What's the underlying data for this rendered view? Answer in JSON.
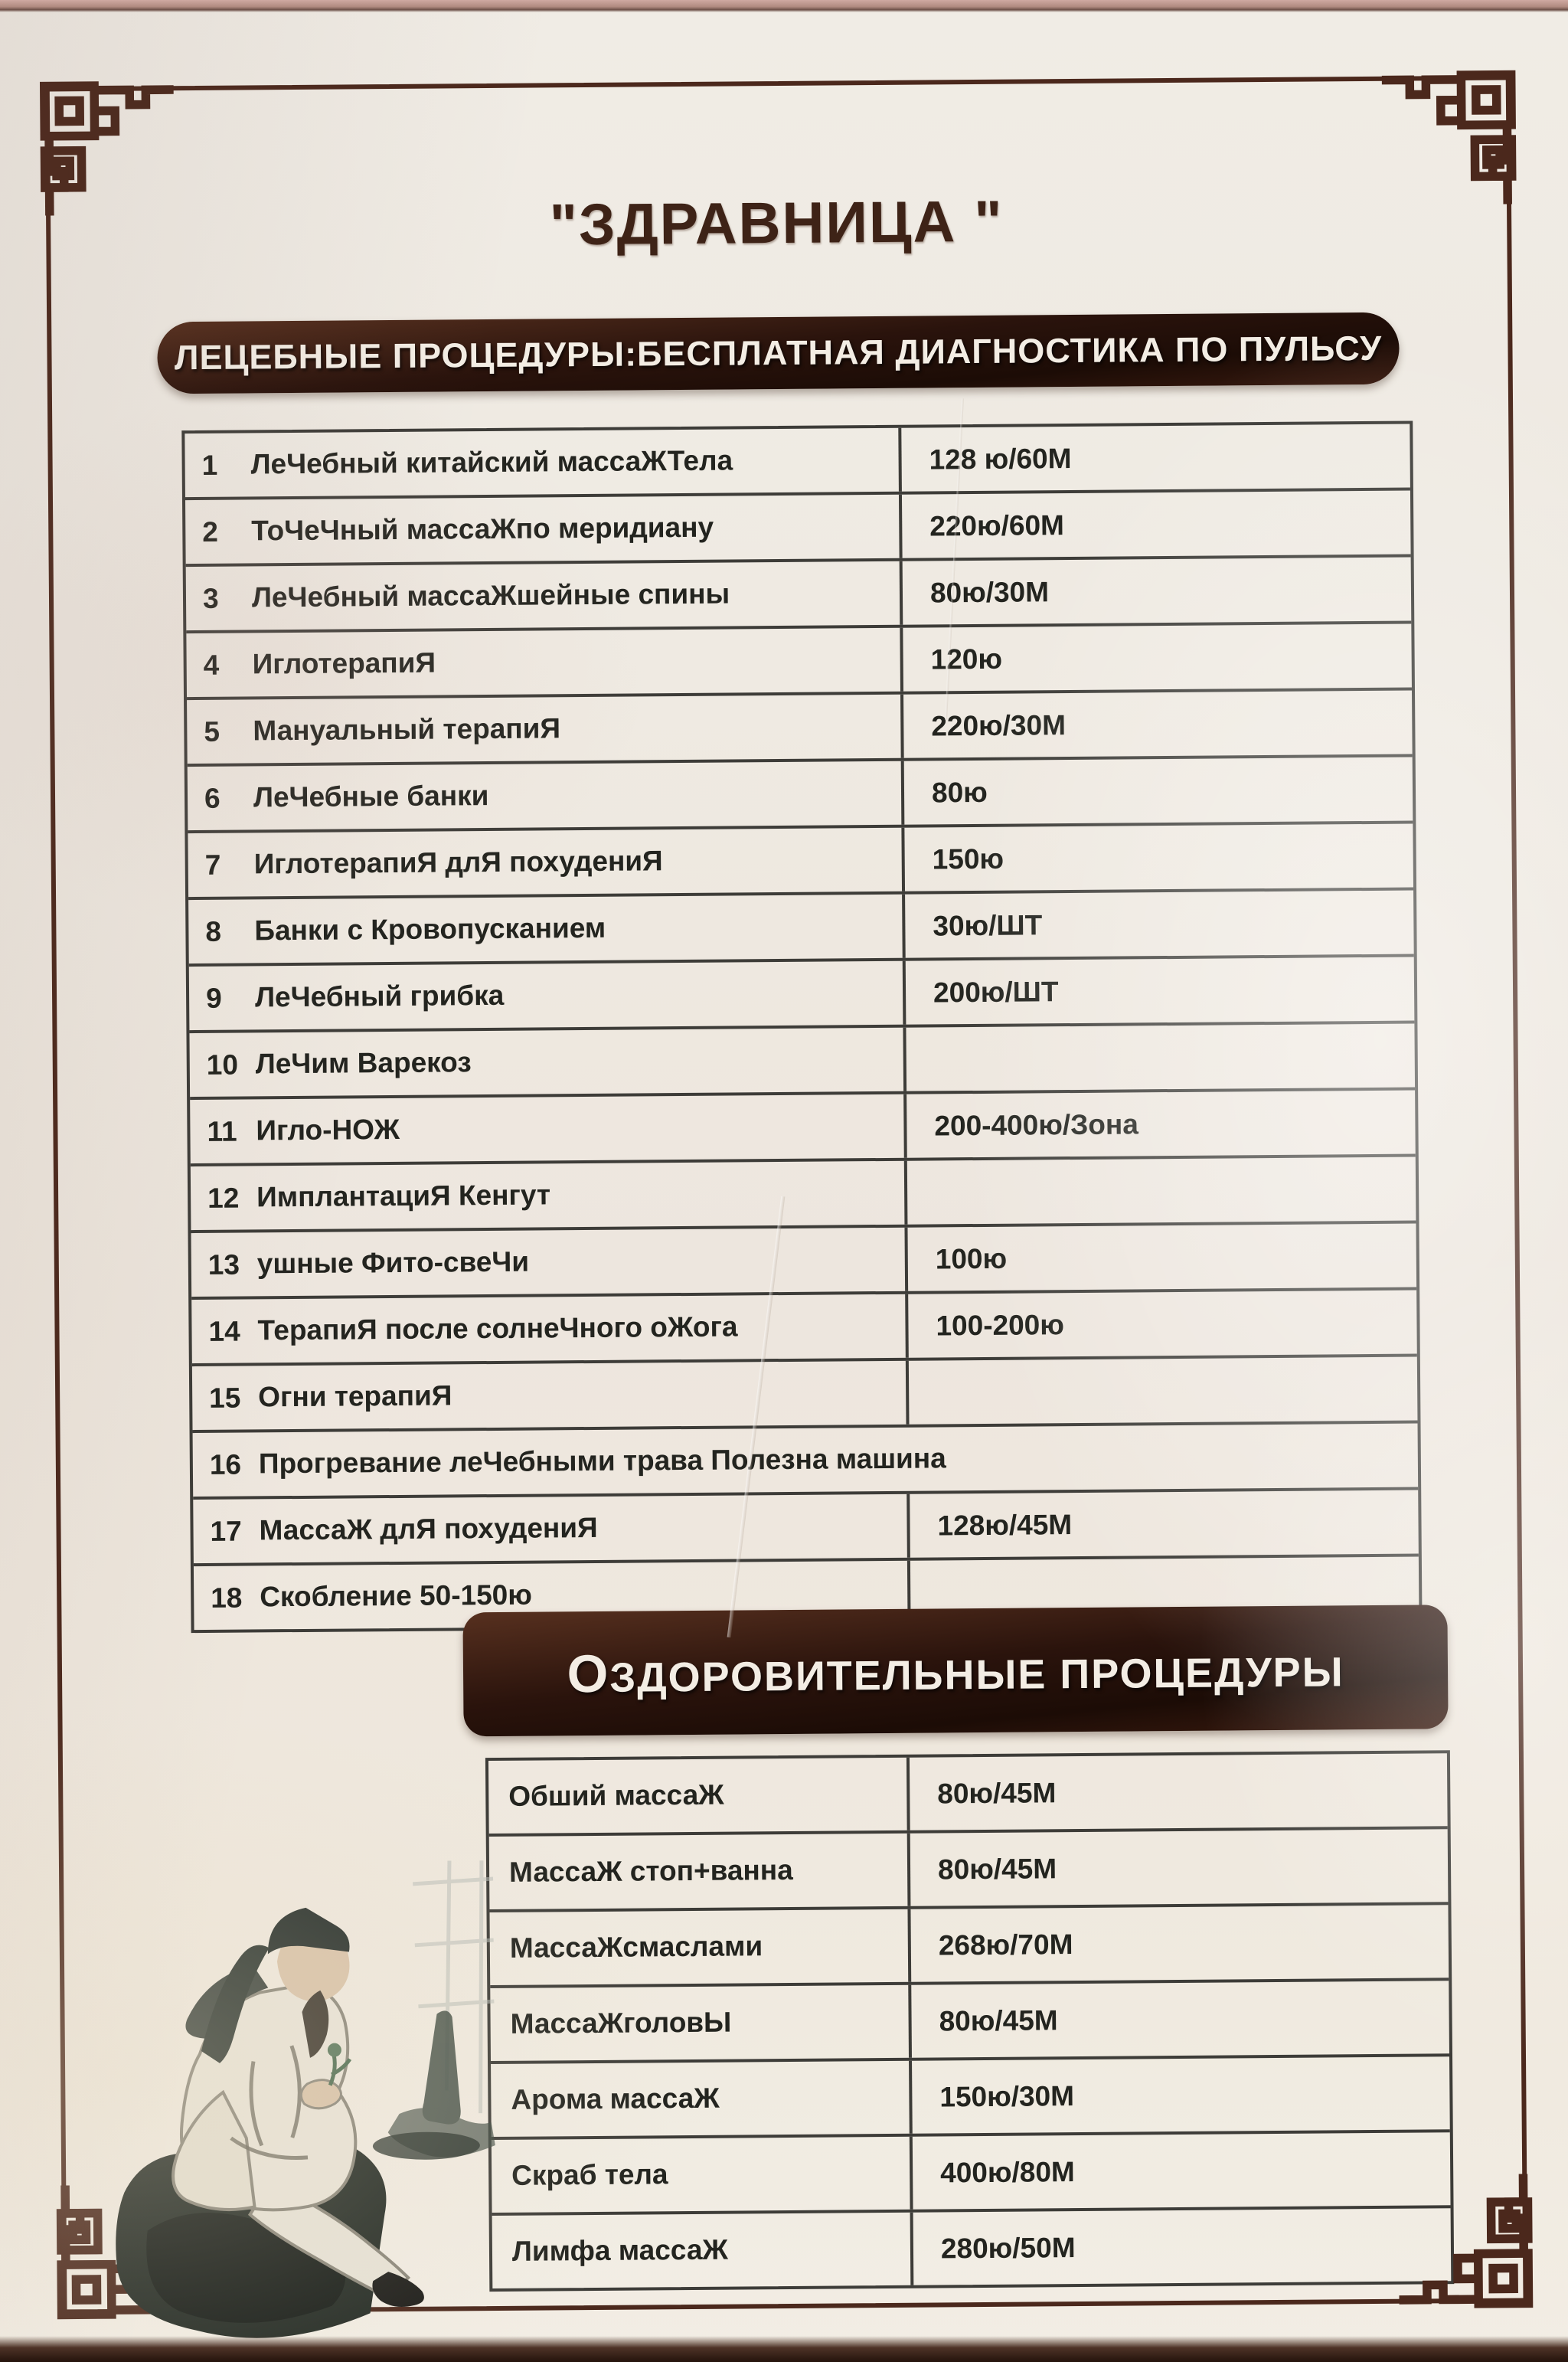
{
  "photo": {
    "title_display": "\"ЗДРАВНИЦА \""
  },
  "colors": {
    "frame": "#4b281c",
    "banner_bg": "#2a130c",
    "banner_text": "#f3ede4",
    "paper": "#efe9e0",
    "table_line": "#3d3c38",
    "text": "#23241f"
  },
  "section1": {
    "banner": "ЛЕЦЕБНЫЕ ПРОЦЕДУРЫ:БЕСПЛАТНАЯ ДИАГНОСТИКА ПО ПУЛЬСУ",
    "rows": [
      {
        "num": "1",
        "name": "ЛеЧебный китайский массаЖТела",
        "price": "128 ю/60М"
      },
      {
        "num": "2",
        "name": "ТоЧеЧный массаЖпо меридиану",
        "price": "220ю/60М"
      },
      {
        "num": "3",
        "name": "ЛеЧебный массаЖшейные спины",
        "price": "80ю/30М"
      },
      {
        "num": "4",
        "name": "ИглотерапиЯ",
        "price": "120ю"
      },
      {
        "num": "5",
        "name": "Мануальный терапиЯ",
        "price": "220ю/30М"
      },
      {
        "num": "6",
        "name": "ЛеЧебные банки",
        "price": "80ю"
      },
      {
        "num": "7",
        "name": "ИглотерапиЯ длЯ похудениЯ",
        "price": "150ю"
      },
      {
        "num": "8",
        "name": "Банки с Кровопусканием",
        "price": "30ю/ШТ"
      },
      {
        "num": "9",
        "name": "ЛеЧебный грибка",
        "price": "200ю/ШТ"
      },
      {
        "num": "10",
        "name": "ЛеЧим Варекоз",
        "price": ""
      },
      {
        "num": "11",
        "name": "Игло-НОЖ",
        "price": "200-400ю/Зона"
      },
      {
        "num": "12",
        "name": "ИмплантациЯ Кенгут",
        "price": ""
      },
      {
        "num": "13",
        "name": "ушные Фито-свеЧи",
        "price": "100ю"
      },
      {
        "num": "14",
        "name": "ТерапиЯ после солнеЧного оЖога",
        "price": "100-200ю"
      },
      {
        "num": "15",
        "name": "Огни терапиЯ",
        "price": ""
      },
      {
        "num": "16",
        "name": "Прогревание леЧебными трава Полезна машина",
        "price": "",
        "span": true
      },
      {
        "num": "17",
        "name": "МассаЖ длЯ похудениЯ",
        "price": "128ю/45М"
      },
      {
        "num": "18",
        "name": "Скобление 50-150ю",
        "price": ""
      }
    ]
  },
  "section2": {
    "banner": "ОЗДОРОВИТЕЛЬНЫЕ ПРОЦЕДУРЫ",
    "rows": [
      {
        "name": "Обший массаЖ",
        "price": "80ю/45М"
      },
      {
        "name": "МассаЖ стоп+ванна",
        "price": "80ю/45М"
      },
      {
        "name": "МассаЖсмаслами",
        "price": "268ю/70М"
      },
      {
        "name": "МассаЖголовЫ",
        "price": "80ю/45М"
      },
      {
        "name": "Арома массаЖ",
        "price": "150ю/30М"
      },
      {
        "name": "Скраб тела",
        "price": "400ю/80М"
      },
      {
        "name": "Лимфа массаЖ",
        "price": "280ю/50М"
      }
    ]
  },
  "illustration": {
    "description": "ink painting of seated Chinese sage examining herb"
  }
}
